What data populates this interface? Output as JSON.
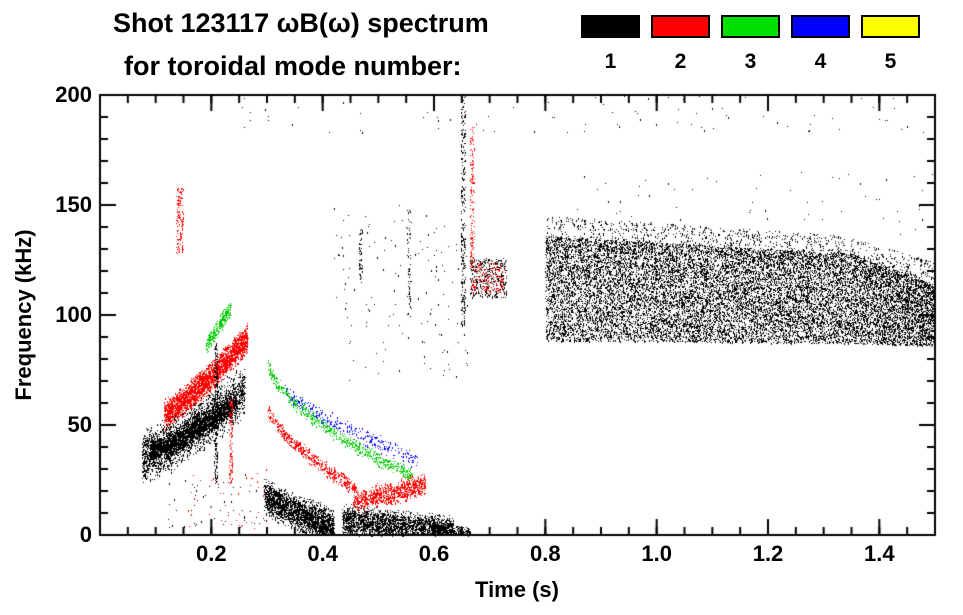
{
  "chart_data": {
    "type": "scatter",
    "title": "Shot 123117 ωB(ω) spectrum",
    "subtitle": "for toroidal mode number:",
    "xlabel": "Time (s)",
    "ylabel": "Frequency (kHz)",
    "xlim": [
      0,
      1.5
    ],
    "ylim": [
      0,
      200
    ],
    "xticks": [
      0.2,
      0.4,
      0.6,
      0.8,
      1.0,
      1.2,
      1.4
    ],
    "yticks": [
      0,
      50,
      100,
      150,
      200
    ],
    "xminor": 0.05,
    "yminor": 10,
    "grid": false,
    "background": "#ffffff",
    "legend": {
      "position": "top-right",
      "entries": [
        {
          "label": "1",
          "color": "#000000"
        },
        {
          "label": "2",
          "color": "#ff0000"
        },
        {
          "label": "3",
          "color": "#00e000"
        },
        {
          "label": "4",
          "color": "#0000ff"
        },
        {
          "label": "5",
          "color": "#ffff00"
        }
      ]
    },
    "clusters": [
      {
        "name": "n1-rising-chirp-outer",
        "color": "#000000",
        "type": "chirp",
        "t0": 0.075,
        "t1": 0.26,
        "f0": 36,
        "f1": 66,
        "p": 1.3,
        "spread": 9,
        "count": 2600
      },
      {
        "name": "n1-rising-chirp-core",
        "color": "#000000",
        "type": "chirp",
        "t0": 0.09,
        "t1": 0.245,
        "f0": 38,
        "f1": 61,
        "p": 1.3,
        "spread": 4,
        "count": 1900
      },
      {
        "name": "n2-rising-chirp",
        "color": "#ff0000",
        "type": "chirp",
        "t0": 0.115,
        "t1": 0.265,
        "f0": 55,
        "f1": 90,
        "p": 1.2,
        "spread": 5,
        "count": 2600
      },
      {
        "name": "n2-high-freq-streak",
        "color": "#ff0000",
        "type": "vstreak",
        "t": 0.143,
        "w": 0.013,
        "f0": 128,
        "f1": 158,
        "count": 140
      },
      {
        "name": "n3-early-cluster",
        "color": "#00cc00",
        "type": "chirp",
        "t0": 0.19,
        "t1": 0.235,
        "f0": 86,
        "f1": 104,
        "p": 1,
        "spread": 3,
        "count": 260
      },
      {
        "name": "n1-vertical-streak",
        "color": "#000000",
        "type": "vstreak",
        "t": 0.208,
        "w": 0.006,
        "f0": 22,
        "f1": 88,
        "count": 220
      },
      {
        "name": "n2-vertical-streak",
        "color": "#ff0000",
        "type": "vstreak",
        "t": 0.235,
        "w": 0.006,
        "f0": 24,
        "f1": 62,
        "count": 120
      },
      {
        "name": "n3-decaying-chirp",
        "color": "#00cc00",
        "type": "chirp",
        "t0": 0.3,
        "t1": 0.56,
        "f0": 80,
        "f1": 27,
        "p": 0.6,
        "spread": 2.5,
        "count": 700
      },
      {
        "name": "n2-decaying-chirp",
        "color": "#ff0000",
        "type": "chirp",
        "t0": 0.3,
        "t1": 0.46,
        "f0": 58,
        "f1": 21,
        "p": 0.7,
        "spread": 2.5,
        "count": 520
      },
      {
        "name": "n4-decaying-chirp",
        "color": "#0000ff",
        "type": "chirp",
        "t0": 0.33,
        "t1": 0.57,
        "f0": 66,
        "f1": 34,
        "p": 0.8,
        "spread": 3,
        "count": 300
      },
      {
        "name": "n2-low-freq-blob",
        "color": "#ff0000",
        "type": "chirp",
        "t0": 0.455,
        "t1": 0.585,
        "f0": 15,
        "f1": 23,
        "p": 1,
        "spread": 4,
        "count": 900
      },
      {
        "name": "n1-low-freq-blob-1",
        "color": "#000000",
        "type": "chirp",
        "t0": 0.295,
        "t1": 0.42,
        "f0": 18,
        "f1": 4,
        "p": 0.8,
        "spread": 6,
        "count": 2200
      },
      {
        "name": "n1-low-freq-blob-2",
        "color": "#000000",
        "type": "chirp",
        "t0": 0.435,
        "t1": 0.635,
        "f0": 7,
        "f1": 2,
        "p": 1,
        "spread": 5,
        "count": 2400
      },
      {
        "name": "n1-low-freq-taper",
        "color": "#000000",
        "type": "chirp",
        "t0": 0.6,
        "t1": 0.665,
        "f0": 4,
        "f1": 1,
        "p": 1,
        "spread": 2,
        "count": 250
      },
      {
        "name": "mid-vertical-streak-black",
        "color": "#000000",
        "type": "vstreak",
        "t": 0.652,
        "w": 0.008,
        "f0": 95,
        "f1": 200,
        "count": 260
      },
      {
        "name": "mid-vertical-streak-red",
        "color": "#ff0000",
        "type": "vstreak",
        "t": 0.668,
        "w": 0.008,
        "f0": 108,
        "f1": 186,
        "count": 160
      },
      {
        "name": "post-crash-cluster-black",
        "color": "#000000",
        "type": "scatter",
        "t0": 0.665,
        "t1": 0.73,
        "f0": 108,
        "f1": 126,
        "count": 350
      },
      {
        "name": "post-crash-cluster-red",
        "color": "#ff0000",
        "type": "scatter",
        "t0": 0.67,
        "t1": 0.725,
        "f0": 110,
        "f1": 124,
        "count": 150
      },
      {
        "name": "sparse-streak-047",
        "color": "#000000",
        "type": "vstreak",
        "t": 0.468,
        "w": 0.005,
        "f0": 115,
        "f1": 140,
        "count": 50
      },
      {
        "name": "sparse-streak-055",
        "color": "#000000",
        "type": "vstreak",
        "t": 0.555,
        "w": 0.006,
        "f0": 100,
        "f1": 148,
        "count": 60
      },
      {
        "name": "sparse-mid-band",
        "color": "#000000",
        "type": "scatter",
        "t0": 0.42,
        "t1": 0.66,
        "f0": 70,
        "f1": 150,
        "count": 140
      },
      {
        "name": "sparse-top-edge",
        "color": "#000000",
        "type": "scatter",
        "t0": 0.25,
        "t1": 1.5,
        "f0": 183,
        "f1": 200,
        "count": 85
      },
      {
        "name": "sparse-above-band",
        "color": "#000000",
        "type": "scatter",
        "t0": 0.85,
        "t1": 1.5,
        "f0": 135,
        "f1": 165,
        "count": 60
      },
      {
        "name": "sparse-low-left-black",
        "color": "#000000",
        "type": "scatter",
        "t0": 0.12,
        "t1": 0.3,
        "f0": 3,
        "f1": 28,
        "count": 60
      },
      {
        "name": "sparse-low-left-red",
        "color": "#ff0000",
        "type": "scatter",
        "t0": 0.15,
        "t1": 0.3,
        "f0": 3,
        "f1": 30,
        "count": 40
      },
      {
        "name": "main-turbulent-band",
        "color": "#000000",
        "type": "band",
        "t0": 0.8,
        "t1": 1.5,
        "edges": [
          [
            0.8,
            88,
            136
          ],
          [
            1.0,
            88,
            133
          ],
          [
            1.35,
            87,
            128
          ],
          [
            1.5,
            86,
            114
          ]
        ],
        "count": 15000
      },
      {
        "name": "band-top-fuzz",
        "color": "#000000",
        "type": "band",
        "t0": 0.8,
        "t1": 1.5,
        "edges": [
          [
            0.8,
            130,
            145
          ],
          [
            1.0,
            128,
            142
          ],
          [
            1.35,
            124,
            136
          ],
          [
            1.5,
            110,
            124
          ]
        ],
        "count": 1200
      }
    ]
  }
}
